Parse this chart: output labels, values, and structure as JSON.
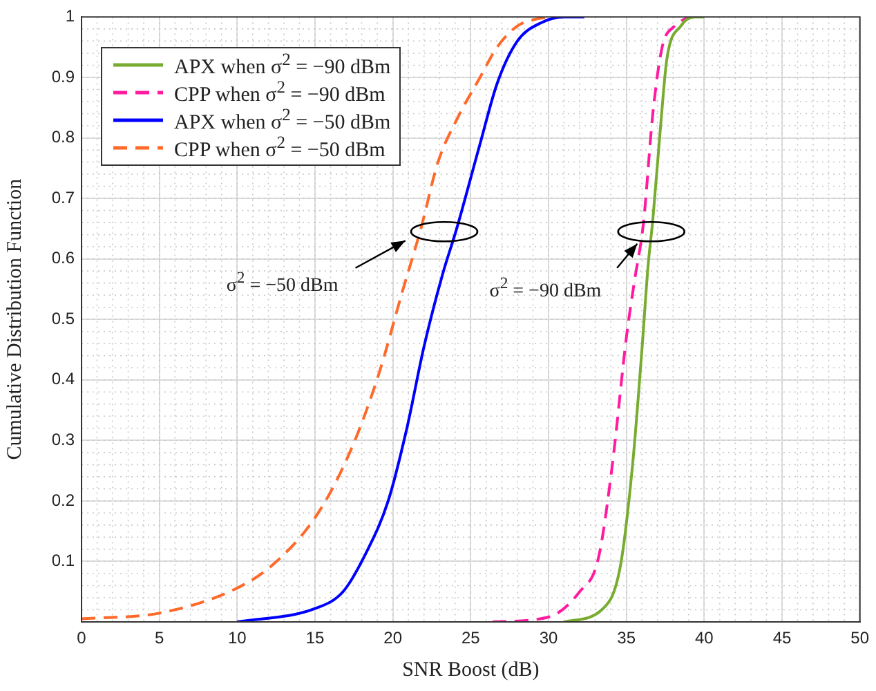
{
  "chart_data": {
    "type": "line",
    "xlabel": "SNR Boost (dB)",
    "ylabel": "Cumulative Distribution Function",
    "xlim": [
      0,
      50
    ],
    "xticks": [
      0,
      5,
      10,
      15,
      20,
      25,
      30,
      35,
      40,
      45,
      50
    ],
    "ylim": [
      0,
      1
    ],
    "yticks": [
      {
        "value": 0,
        "label": null
      },
      0.1,
      0.2,
      0.3,
      0.4,
      0.5,
      0.6,
      0.7,
      0.8,
      0.9,
      1
    ],
    "grid": true,
    "legend": "top left",
    "marker": "none",
    "series": [
      {
        "name": "APX when σ$^{2}$ = −90 dBm",
        "color": "#77ac30",
        "line_style": "solid",
        "x": [
          31,
          33.5,
          34.6,
          35.4,
          36,
          36.4,
          36.7,
          37.2,
          37.6,
          38.5,
          39.4,
          40
        ],
        "values": [
          0,
          0.022,
          0.09,
          0.26,
          0.45,
          0.59,
          0.665,
          0.82,
          0.93,
          0.985,
          1,
          1
        ]
      },
      {
        "name": "CPP when σ$^{2}$ = −90 dBm",
        "color": "#ff1aa0",
        "line_style": "dashed",
        "x": [
          26.4,
          30,
          32,
          33.2,
          34.1,
          35,
          35.5,
          36.1,
          36.7,
          37.3,
          38.1,
          39
        ],
        "values": [
          0,
          0.008,
          0.05,
          0.105,
          0.26,
          0.47,
          0.56,
          0.66,
          0.84,
          0.95,
          0.985,
          1
        ]
      },
      {
        "name": "APX when σ$^{2}$ = −50 dBm",
        "color": "#0000ff",
        "line_style": "solid",
        "x": [
          10,
          15,
          16.8,
          18.2,
          19.7,
          20.9,
          22,
          23.2,
          24.1,
          25.6,
          26.7,
          28,
          29.5,
          31,
          32.3
        ],
        "values": [
          0,
          0.022,
          0.05,
          0.11,
          0.2,
          0.32,
          0.455,
          0.575,
          0.65,
          0.79,
          0.89,
          0.96,
          0.99,
          1,
          1
        ]
      },
      {
        "name": "CPP when σ$^{2}$ = −50 dBm",
        "color": "#ff6929",
        "line_style": "dashed",
        "x": [
          0,
          5.1,
          10,
          12.4,
          15.2,
          17.4,
          19.1,
          20.6,
          21.8,
          22.9,
          24.1,
          25.6,
          26.7,
          28,
          29,
          30
        ],
        "values": [
          0.005,
          0.015,
          0.056,
          0.097,
          0.18,
          0.29,
          0.41,
          0.545,
          0.65,
          0.76,
          0.83,
          0.9,
          0.95,
          0.985,
          0.995,
          1
        ]
      }
    ],
    "annotations": [
      "σ$^{2}$ = −50 dBm",
      {
        "text": "σ$^{2}$ = −90 dBm",
        "x": 35.7,
        "y": 0.625
      }
    ]
  }
}
